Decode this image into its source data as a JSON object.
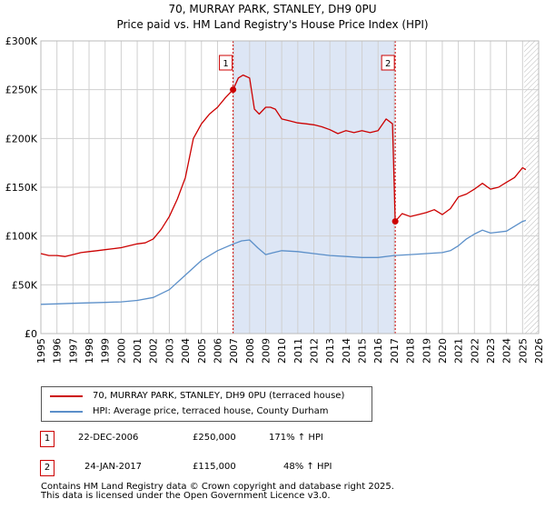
{
  "title": {
    "line1": "70, MURRAY PARK, STANLEY, DH9 0PU",
    "line2": "Price paid vs. HM Land Registry's House Price Index (HPI)"
  },
  "colors": {
    "property": "#cc0000",
    "hpi": "#5b8fc9",
    "shade": "#dde6f5",
    "grid": "#d0d0d0"
  },
  "chart_data": {
    "type": "line",
    "xlim": [
      1995,
      2026
    ],
    "ylim": [
      0,
      300000
    ],
    "x_ticks": [
      1995,
      1996,
      1997,
      1998,
      1999,
      2000,
      2001,
      2002,
      2003,
      2004,
      2005,
      2006,
      2007,
      2008,
      2009,
      2010,
      2011,
      2012,
      2013,
      2014,
      2015,
      2016,
      2017,
      2018,
      2019,
      2020,
      2021,
      2022,
      2023,
      2024,
      2025,
      2026
    ],
    "y_ticks": [
      {
        "value": 0,
        "label": "£0"
      },
      {
        "value": 50000,
        "label": "£50K"
      },
      {
        "value": 100000,
        "label": "£100K"
      },
      {
        "value": 150000,
        "label": "£150K"
      },
      {
        "value": 200000,
        "label": "£200K"
      },
      {
        "value": 250000,
        "label": "£250K"
      },
      {
        "value": 300000,
        "label": "£300K"
      }
    ],
    "shaded_range": [
      2006.97,
      2017.07
    ],
    "forecast_from": 2025.1,
    "series": [
      {
        "name": "70, MURRAY PARK, STANLEY, DH9 0PU (terraced house)",
        "color": "#cc0000",
        "x": [
          1995.0,
          1995.5,
          1996.0,
          1996.5,
          1997.0,
          1997.5,
          1998.0,
          1998.5,
          1999.0,
          1999.5,
          2000.0,
          2000.5,
          2001.0,
          2001.5,
          2002.0,
          2002.5,
          2003.0,
          2003.5,
          2004.0,
          2004.5,
          2005.0,
          2005.5,
          2006.0,
          2006.5,
          2006.97,
          2007.3,
          2007.6,
          2008.0,
          2008.3,
          2008.6,
          2009.0,
          2009.3,
          2009.6,
          2010.0,
          2010.5,
          2011.0,
          2011.5,
          2012.0,
          2012.5,
          2013.0,
          2013.5,
          2014.0,
          2014.5,
          2015.0,
          2015.5,
          2016.0,
          2016.5,
          2016.9,
          2017.07,
          2017.5,
          2018.0,
          2018.5,
          2019.0,
          2019.5,
          2020.0,
          2020.5,
          2021.0,
          2021.5,
          2022.0,
          2022.5,
          2023.0,
          2023.5,
          2024.0,
          2024.5,
          2025.0,
          2025.2
        ],
        "y": [
          82000,
          80000,
          80000,
          79000,
          81000,
          83000,
          84000,
          85000,
          86000,
          87000,
          88000,
          90000,
          92000,
          93000,
          97000,
          107000,
          120000,
          138000,
          160000,
          200000,
          215000,
          225000,
          232000,
          242000,
          250000,
          262000,
          265000,
          262000,
          230000,
          225000,
          232000,
          232000,
          230000,
          220000,
          218000,
          216000,
          215000,
          214000,
          212000,
          209000,
          205000,
          208000,
          206000,
          208000,
          206000,
          208000,
          220000,
          215000,
          115000,
          123000,
          120000,
          122000,
          124000,
          127000,
          122000,
          128000,
          140000,
          143000,
          148000,
          154000,
          148000,
          150000,
          155000,
          160000,
          170000,
          168000
        ]
      },
      {
        "name": "HPI: Average price, terraced house, County Durham",
        "color": "#5b8fc9",
        "x": [
          1995.0,
          1996.0,
          1997.0,
          1998.0,
          1999.0,
          2000.0,
          2001.0,
          2002.0,
          2003.0,
          2004.0,
          2005.0,
          2006.0,
          2007.0,
          2007.5,
          2008.0,
          2008.5,
          2009.0,
          2009.5,
          2010.0,
          2011.0,
          2012.0,
          2013.0,
          2014.0,
          2015.0,
          2016.0,
          2017.0,
          2018.0,
          2019.0,
          2020.0,
          2020.5,
          2021.0,
          2021.5,
          2022.0,
          2022.5,
          2023.0,
          2024.0,
          2025.0,
          2025.2
        ],
        "y": [
          30000,
          30500,
          31000,
          31500,
          32000,
          32500,
          34000,
          37000,
          45000,
          60000,
          75000,
          85000,
          92000,
          95000,
          96000,
          88000,
          81000,
          83000,
          85000,
          84000,
          82000,
          80000,
          79000,
          78000,
          78000,
          80000,
          81000,
          82000,
          83000,
          85000,
          90000,
          97000,
          102000,
          106000,
          103000,
          105000,
          115000,
          116000
        ]
      }
    ],
    "sales": [
      {
        "label": "1",
        "x": 2006.97,
        "y": 250000,
        "date": "22-DEC-2006",
        "price": "£250,000",
        "hpi": "171% ↑ HPI"
      },
      {
        "label": "2",
        "x": 2017.07,
        "y": 115000,
        "date": "24-JAN-2017",
        "price": "£115,000",
        "hpi": "48% ↑ HPI"
      }
    ]
  },
  "legend": {
    "property_label": "70, MURRAY PARK, STANLEY, DH9 0PU (terraced house)",
    "hpi_label": "HPI: Average price, terraced house, County Durham"
  },
  "footer": {
    "line1": "Contains HM Land Registry data © Crown copyright and database right 2025.",
    "line2": "This data is licensed under the Open Government Licence v3.0."
  }
}
